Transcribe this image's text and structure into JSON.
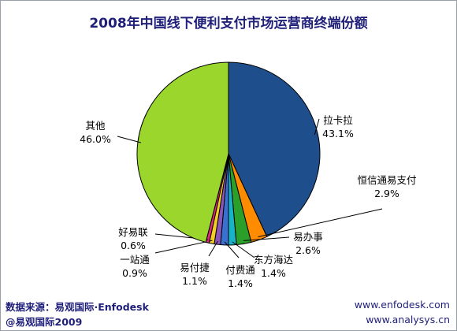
{
  "chart_data": {
    "type": "pie",
    "title": "2008年中国线下便利支付市场运营商终端份额",
    "slices": [
      {
        "name": "拉卡拉",
        "value": 43.1,
        "label": "43.1%",
        "color": "#1f4e8c"
      },
      {
        "name": "恒信通易支付",
        "value": 2.9,
        "label": "2.9%",
        "color": "#ff8c00"
      },
      {
        "name": "易办事",
        "value": 2.6,
        "label": "2.6%",
        "color": "#2aa02a"
      },
      {
        "name": "东方海达",
        "value": 1.4,
        "label": "1.4%",
        "color": "#17b4c8"
      },
      {
        "name": "付费通",
        "value": 1.4,
        "label": "1.4%",
        "color": "#3a70d0"
      },
      {
        "name": "易付捷",
        "value": 1.1,
        "label": "1.1%",
        "color": "#8a55b8"
      },
      {
        "name": "一站通",
        "value": 0.9,
        "label": "0.9%",
        "color": "#f2cf22"
      },
      {
        "name": "好易联",
        "value": 0.6,
        "label": "0.6%",
        "color": "#e0287a"
      },
      {
        "name": "其他",
        "value": 46.0,
        "label": "46.0%",
        "color": "#9bd62c"
      }
    ]
  },
  "footer": {
    "source": "数据来源：易观国际·Enfodesk",
    "copyright": "@易观国际2009",
    "site1": "www.enfodesk.com",
    "site2": "www.analysys.cn"
  }
}
